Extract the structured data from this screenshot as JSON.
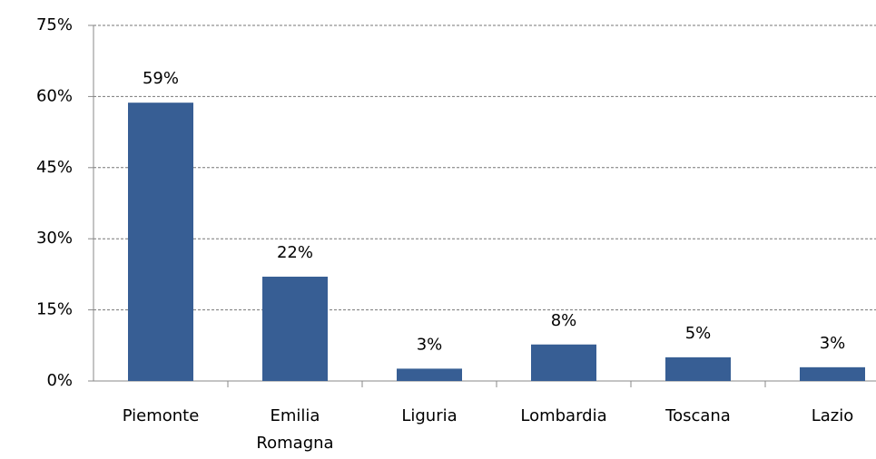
{
  "chart_data": {
    "type": "bar",
    "categories": [
      "Piemonte",
      "Emilia Romagna",
      "Liguria",
      "Lombardia",
      "Toscana",
      "Lazio"
    ],
    "values": [
      58.7,
      22.0,
      2.6,
      7.7,
      5.0,
      2.9
    ],
    "value_labels": [
      "59%",
      "22%",
      "3%",
      "8%",
      "5%",
      "3%"
    ],
    "color": "#375e94",
    "ylim": [
      0,
      75
    ],
    "yticks": [
      {
        "value": 0,
        "label": "0%"
      },
      {
        "value": 15,
        "label": "15%"
      },
      {
        "value": 30,
        "label": "30%"
      },
      {
        "value": 45,
        "label": "45%"
      },
      {
        "value": 60,
        "label": "60%"
      },
      {
        "value": 75,
        "label": "75%"
      }
    ],
    "grid": true
  }
}
